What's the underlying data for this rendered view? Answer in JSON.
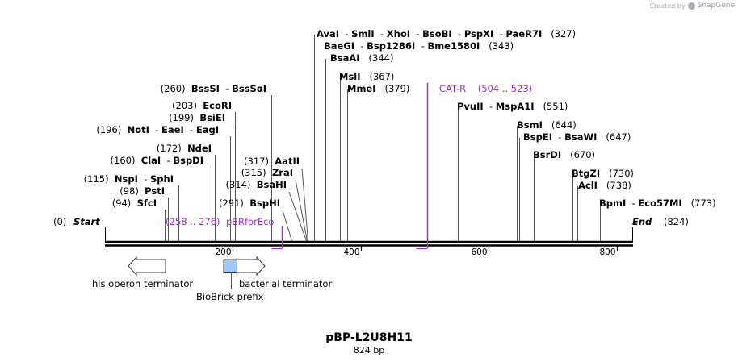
{
  "credit": {
    "prefix": "Created by",
    "brand": "SnapGene"
  },
  "plasmid": {
    "name": "pBP-L2U8H11",
    "length_label": "824 bp"
  },
  "ends": {
    "start": {
      "pos": "(0)",
      "label": "Start"
    },
    "end": {
      "pos": "(824)",
      "label": "End"
    }
  },
  "axis": {
    "total_bp": 824,
    "ticks": [
      {
        "bp": 200,
        "label": "200"
      },
      {
        "bp": 400,
        "label": "400"
      },
      {
        "bp": 600,
        "label": "600"
      },
      {
        "bp": 800,
        "label": "800"
      }
    ]
  },
  "enzymes_right": [
    {
      "row": 0,
      "bp": 327,
      "pos": "(327)",
      "names": [
        "AvaI",
        "SmlI",
        "XhoI",
        "BsoBI",
        "PspXI",
        "PaeR7I"
      ]
    },
    {
      "row": 1,
      "bp": 343,
      "pos": "(343)",
      "names": [
        "BaeGI",
        "Bsp1286I",
        "Bme1580I"
      ]
    },
    {
      "row": 2,
      "bp": 344,
      "pos": "(344)",
      "names": [
        "BsaAI"
      ]
    },
    {
      "row": 3,
      "bp": 367,
      "pos": "(367)",
      "names": [
        "MslI"
      ]
    },
    {
      "row": 4,
      "bp": 379,
      "pos": "(379)",
      "names": [
        "MmeI"
      ]
    },
    {
      "row": 5,
      "bp": 551,
      "pos": "(551)",
      "names": [
        "PvuII",
        "MspA1I"
      ]
    },
    {
      "row": 6,
      "bp": 644,
      "pos": "(644)",
      "names": [
        "BsmI"
      ]
    },
    {
      "row": 7,
      "bp": 647,
      "pos": "(647)",
      "names": [
        "BspEI",
        "BsaWI"
      ]
    },
    {
      "row": 8,
      "bp": 670,
      "pos": "(670)",
      "names": [
        "BsrDI"
      ]
    },
    {
      "row": 9,
      "bp": 730,
      "pos": "(730)",
      "names": [
        "BtgZI"
      ]
    },
    {
      "row": 10,
      "bp": 738,
      "pos": "(738)",
      "names": [
        "AclI"
      ]
    },
    {
      "row": 11,
      "bp": 773,
      "pos": "(773)",
      "names": [
        "BpmI",
        "Eco57MI"
      ]
    }
  ],
  "enzymes_left": [
    {
      "row": 0,
      "bp": 260,
      "pos": "(260)",
      "names": [
        "BssSI",
        "BssSαI"
      ]
    },
    {
      "row": 1,
      "bp": 203,
      "pos": "(203)",
      "names": [
        "EcoRI"
      ]
    },
    {
      "row": 2,
      "bp": 199,
      "pos": "(199)",
      "names": [
        "BsiEI"
      ]
    },
    {
      "row": 3,
      "bp": 196,
      "pos": "(196)",
      "names": [
        "NotI",
        "EaeI",
        "EagI"
      ]
    },
    {
      "row": 4,
      "bp": 172,
      "pos": "(172)",
      "names": [
        "NdeI"
      ]
    },
    {
      "row": 5,
      "bp": 160,
      "pos": "(160)",
      "names": [
        "ClaI",
        "BspDI"
      ]
    },
    {
      "row": 6,
      "bp": 115,
      "pos": "(115)",
      "names": [
        "NspI",
        "SphI"
      ]
    },
    {
      "row": 7,
      "bp": 98,
      "pos": "(98)",
      "names": [
        "PstI"
      ]
    },
    {
      "row": 8,
      "bp": 94,
      "pos": "(94)",
      "names": [
        "SfcI"
      ]
    }
  ],
  "enzymes_mid": [
    {
      "row": 0,
      "bp": 317,
      "pos": "(317)",
      "names": [
        "AatII"
      ]
    },
    {
      "row": 1,
      "bp": 315,
      "pos": "(315)",
      "names": [
        "ZraI"
      ]
    },
    {
      "row": 2,
      "bp": 314,
      "pos": "(314)",
      "names": [
        "BsaHI"
      ]
    },
    {
      "row": 3,
      "bp": 291,
      "pos": "(291)",
      "names": [
        "BspHI"
      ]
    }
  ],
  "primers": [
    {
      "name": "CAT-R",
      "range": "(504 .. 523)",
      "start_bp": 504,
      "end_bp": 523,
      "color": "#9b30d9"
    },
    {
      "name": "pBRforEco",
      "range": "(258 .. 276)",
      "start_bp": 258,
      "end_bp": 276,
      "color": "#9b30d9"
    }
  ],
  "features": [
    {
      "name": "his operon terminator",
      "type": "terminator",
      "start_bp": 36,
      "end_bp": 95
    },
    {
      "name": "bacterial terminator",
      "type": "terminator",
      "start_bp": 186,
      "end_bp": 250
    },
    {
      "name": "BioBrick prefix",
      "type": "misc",
      "start_bp": 186,
      "end_bp": 207,
      "color": "#9fc8f6"
    }
  ]
}
